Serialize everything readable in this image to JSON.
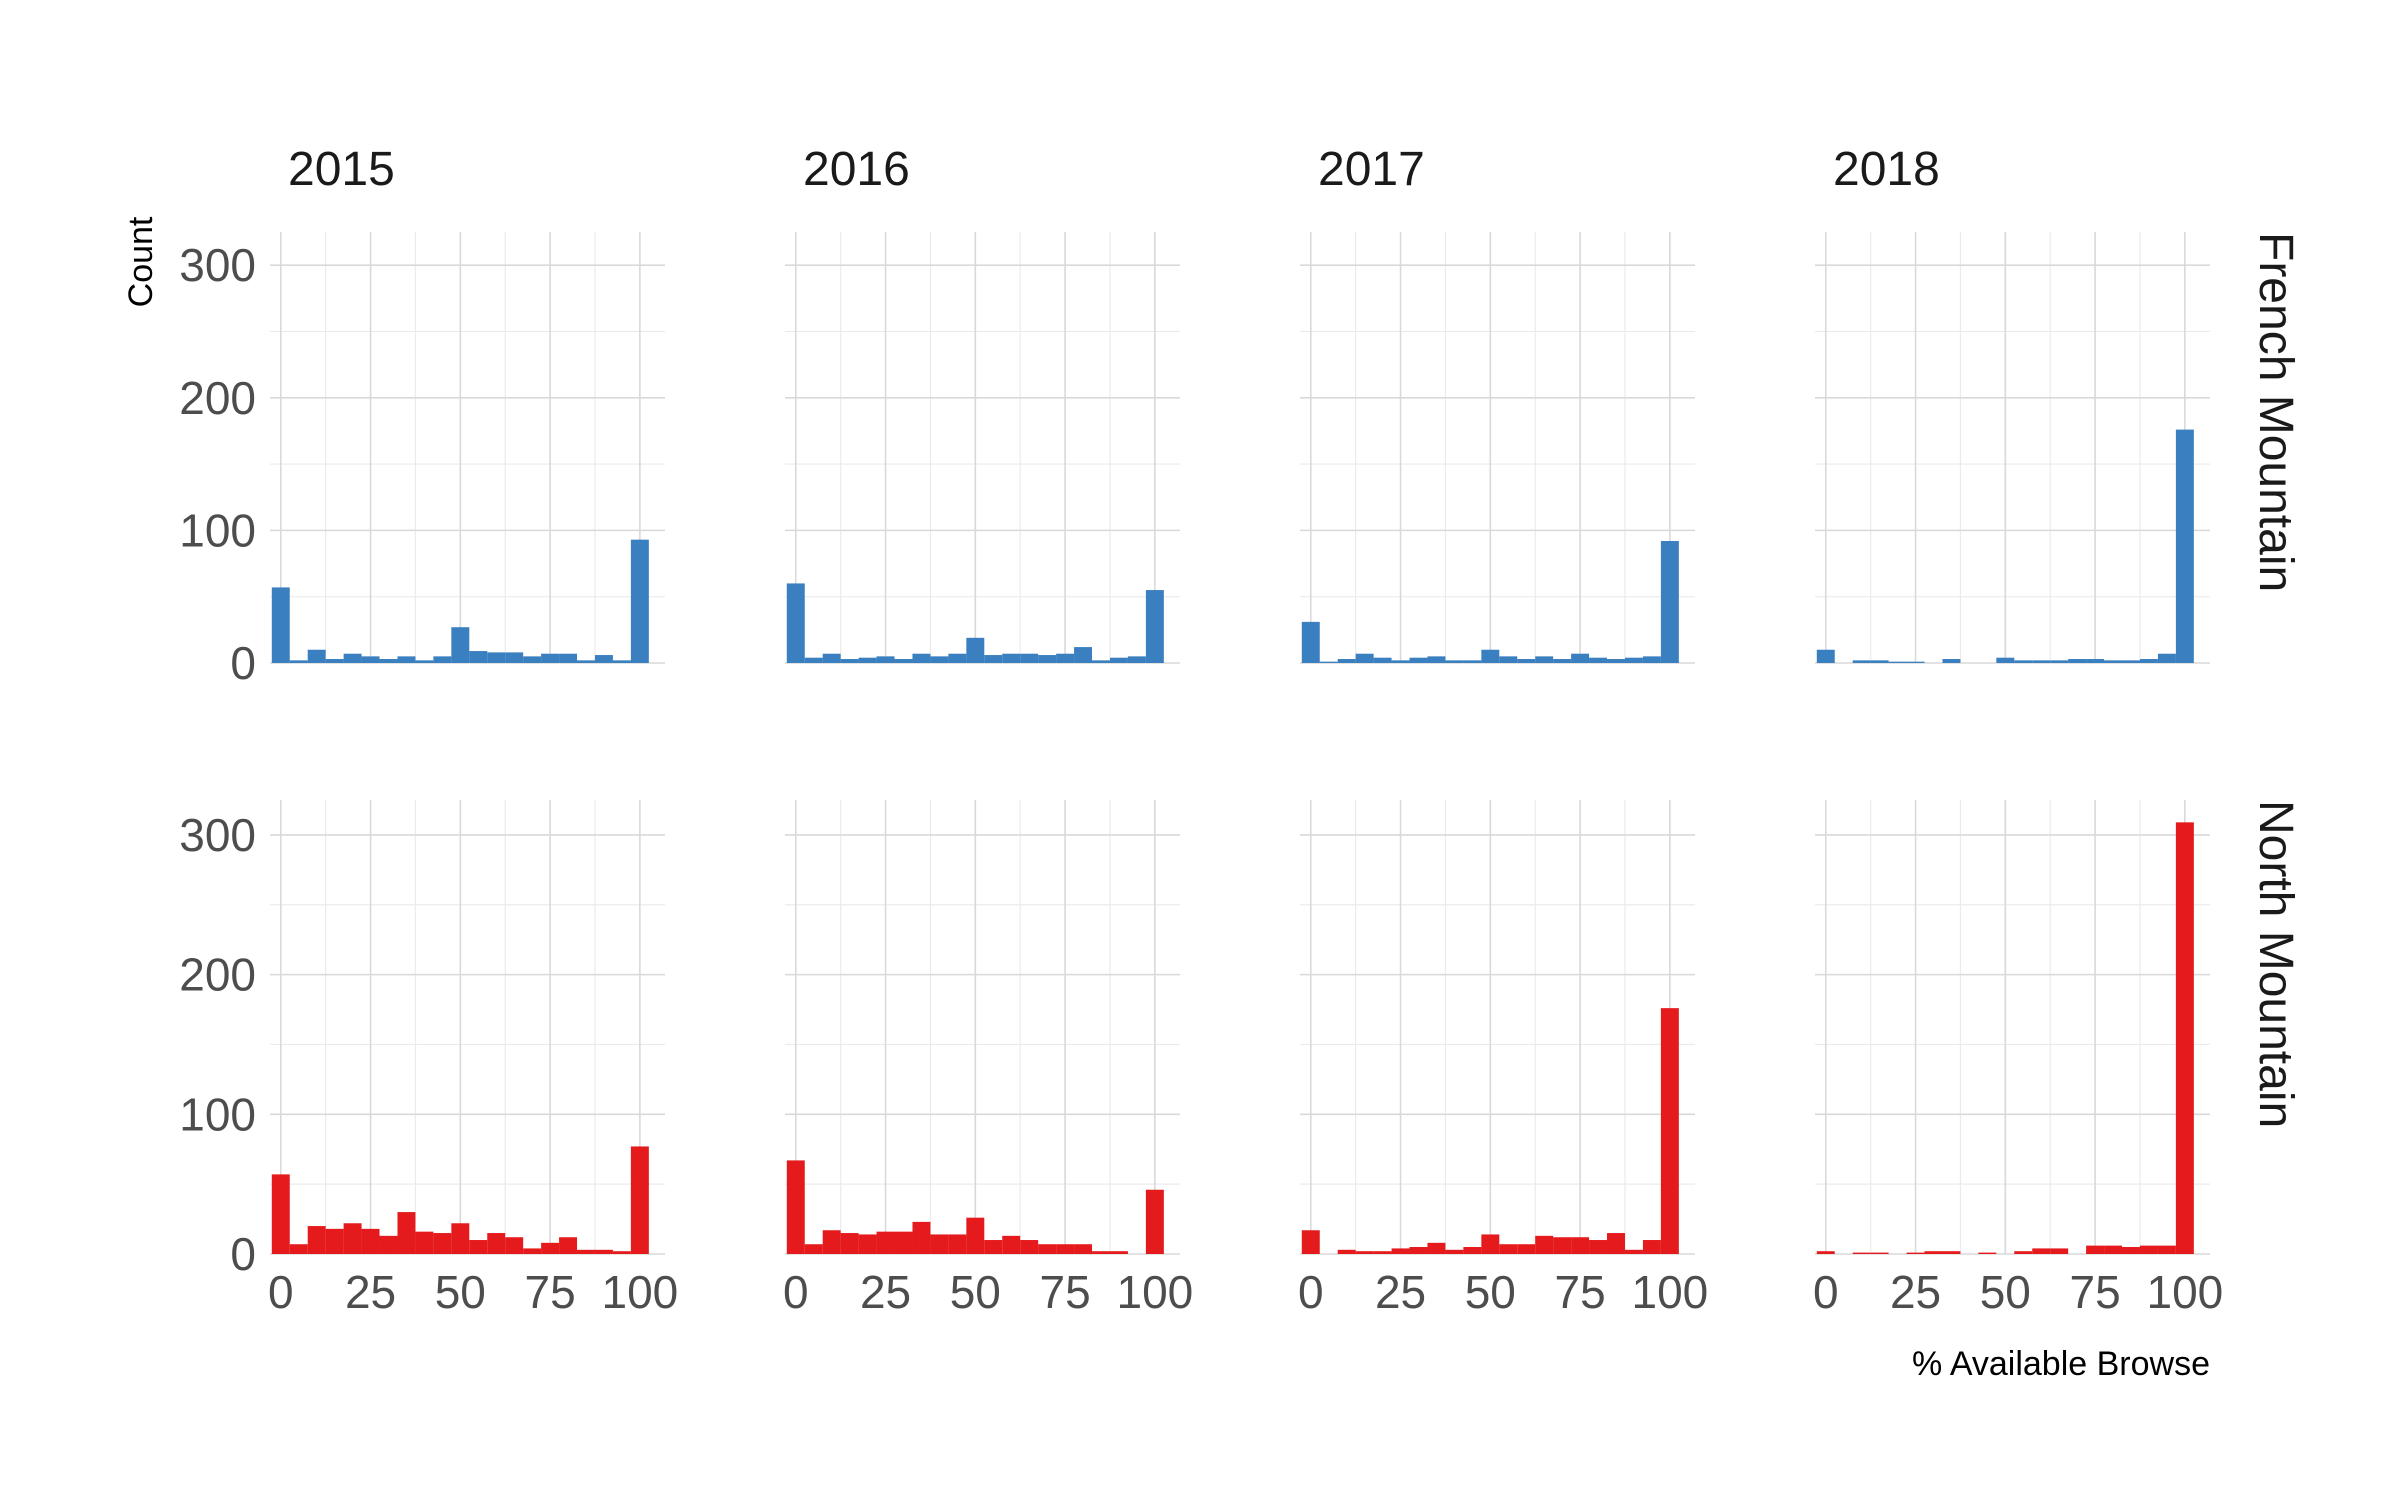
{
  "chart_data": {
    "type": "bar",
    "subtype": "histogram",
    "facet_columns": [
      "2015",
      "2016",
      "2017",
      "2018"
    ],
    "facet_rows": [
      "French Mountain",
      "North Mountain"
    ],
    "xlabel": "% Available Browse",
    "ylabel": "Count",
    "x_ticks": [
      0,
      25,
      50,
      75,
      100
    ],
    "y_ticks": [
      0,
      100,
      200,
      300
    ],
    "xlim": [
      -3,
      107
    ],
    "ylim": [
      0,
      325
    ],
    "bin_width": 5,
    "bin_centers": [
      0,
      5,
      10,
      15,
      20,
      25,
      30,
      35,
      40,
      45,
      50,
      55,
      60,
      65,
      70,
      75,
      80,
      85,
      90,
      95,
      100
    ],
    "colors": {
      "French Mountain": "#3a7fbf",
      "North Mountain": "#e41a1c"
    },
    "grid": true,
    "legend": "none",
    "panels": [
      {
        "row": "French Mountain",
        "column": "2015",
        "counts": [
          57,
          2,
          10,
          3,
          7,
          5,
          3,
          5,
          2,
          5,
          27,
          9,
          8,
          8,
          5,
          7,
          7,
          2,
          6,
          2,
          93
        ]
      },
      {
        "row": "French Mountain",
        "column": "2016",
        "counts": [
          60,
          4,
          7,
          3,
          4,
          5,
          3,
          7,
          5,
          7,
          19,
          6,
          7,
          7,
          6,
          7,
          12,
          2,
          4,
          5,
          55
        ]
      },
      {
        "row": "French Mountain",
        "column": "2017",
        "counts": [
          31,
          1,
          3,
          7,
          4,
          2,
          4,
          5,
          2,
          2,
          10,
          5,
          3,
          5,
          3,
          7,
          4,
          3,
          4,
          5,
          92
        ]
      },
      {
        "row": "French Mountain",
        "column": "2018",
        "counts": [
          10,
          0,
          2,
          2,
          1,
          1,
          0,
          3,
          0,
          0,
          4,
          2,
          2,
          2,
          3,
          3,
          2,
          2,
          3,
          7,
          176
        ]
      },
      {
        "row": "North Mountain",
        "column": "2015",
        "counts": [
          57,
          7,
          20,
          18,
          22,
          18,
          13,
          30,
          16,
          15,
          22,
          10,
          15,
          12,
          4,
          8,
          12,
          3,
          3,
          2,
          77
        ]
      },
      {
        "row": "North Mountain",
        "column": "2016",
        "counts": [
          67,
          7,
          17,
          15,
          14,
          16,
          16,
          23,
          14,
          14,
          26,
          10,
          13,
          10,
          7,
          7,
          7,
          2,
          2,
          0,
          46
        ]
      },
      {
        "row": "North Mountain",
        "column": "2017",
        "counts": [
          17,
          0,
          3,
          2,
          2,
          4,
          5,
          8,
          3,
          5,
          14,
          7,
          7,
          13,
          12,
          12,
          10,
          15,
          3,
          10,
          176
        ]
      },
      {
        "row": "North Mountain",
        "column": "2018",
        "counts": [
          2,
          0,
          1,
          1,
          0,
          1,
          2,
          2,
          0,
          1,
          0,
          2,
          4,
          4,
          0,
          6,
          6,
          5,
          6,
          6,
          309
        ]
      }
    ]
  }
}
